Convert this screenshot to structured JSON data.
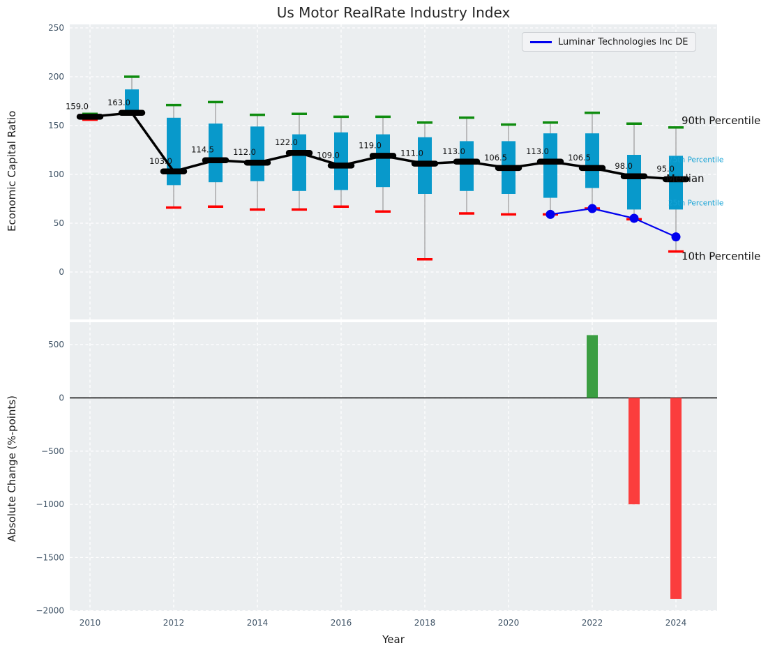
{
  "title": "Us Motor RealRate Industry Index",
  "legend": {
    "label": "Luminar Technologies Inc DE"
  },
  "colors": {
    "axes_bg": "#ebeef0",
    "grid": "#ffffff",
    "box_fill": "#0899cb",
    "whisker": "#999999",
    "cap_high": "#0f8c0f",
    "cap_low": "#fe0000",
    "median_line": "#000000",
    "company_line": "#0000ee",
    "bar_positive": "#3b9e42",
    "bar_negative": "#fb3d3d",
    "tick_label": "#3f5366",
    "annotation_black": "#111111",
    "annotation_cyan": "#15a3d6"
  },
  "chart_data": [
    {
      "type": "boxplot-percentile",
      "title": "Us Motor RealRate Industry Index",
      "ylabel": "Economic Capital Ratio",
      "yticks": [
        250,
        200,
        150,
        100,
        50,
        0
      ],
      "ylim": [
        -48,
        253
      ],
      "grid": true,
      "years": [
        2010,
        2011,
        2012,
        2013,
        2014,
        2015,
        2016,
        2017,
        2018,
        2019,
        2020,
        2021,
        2022,
        2023,
        2024
      ],
      "median": [
        159.0,
        163.0,
        103.0,
        114.5,
        112.0,
        122.0,
        109.0,
        119.0,
        111.0,
        113.0,
        106.5,
        113.0,
        106.5,
        98.0,
        95.0
      ],
      "p75": [
        161,
        187,
        158,
        152,
        149,
        141,
        143,
        141,
        138,
        134,
        134,
        142,
        142,
        120,
        119
      ],
      "p25": [
        157,
        163,
        89,
        92,
        93,
        83,
        84,
        87,
        80,
        83,
        80,
        76,
        86,
        64,
        64
      ],
      "p90": [
        162,
        200,
        171,
        174,
        161,
        162,
        159,
        159,
        153,
        158,
        151,
        153,
        163,
        152,
        148
      ],
      "p10": [
        156,
        163,
        66,
        67,
        64,
        64,
        67,
        62,
        13,
        60,
        59,
        59,
        65,
        54,
        21
      ],
      "percentile_labels": [
        "90th Percentile",
        "75th Percentile",
        "Median",
        "25th Percentile",
        "10th Percentile"
      ],
      "series": [
        {
          "name": "Luminar Technologies Inc DE",
          "x": [
            2021,
            2022,
            2023,
            2024
          ],
          "values": [
            59,
            65,
            55,
            36
          ]
        }
      ],
      "legend_position": "upper right"
    },
    {
      "type": "bar",
      "ylabel": "Absolute Change (%-points)",
      "xlabel": "Year",
      "yticks": [
        {
          "v": 500,
          "label": "500"
        },
        {
          "v": 0,
          "label": "0"
        },
        {
          "v": -500,
          "label": "−500"
        },
        {
          "v": -1000,
          "label": "−1000"
        },
        {
          "v": -1500,
          "label": "−1500"
        },
        {
          "v": -2000,
          "label": "−2000"
        }
      ],
      "xticks": [
        2010,
        2012,
        2014,
        2016,
        2018,
        2020,
        2022,
        2024
      ],
      "ylim": [
        -2020,
        710
      ],
      "grid": true,
      "bars": [
        {
          "year": 2022,
          "value": 590
        },
        {
          "year": 2023,
          "value": -1000
        },
        {
          "year": 2024,
          "value": -1890
        }
      ]
    }
  ]
}
